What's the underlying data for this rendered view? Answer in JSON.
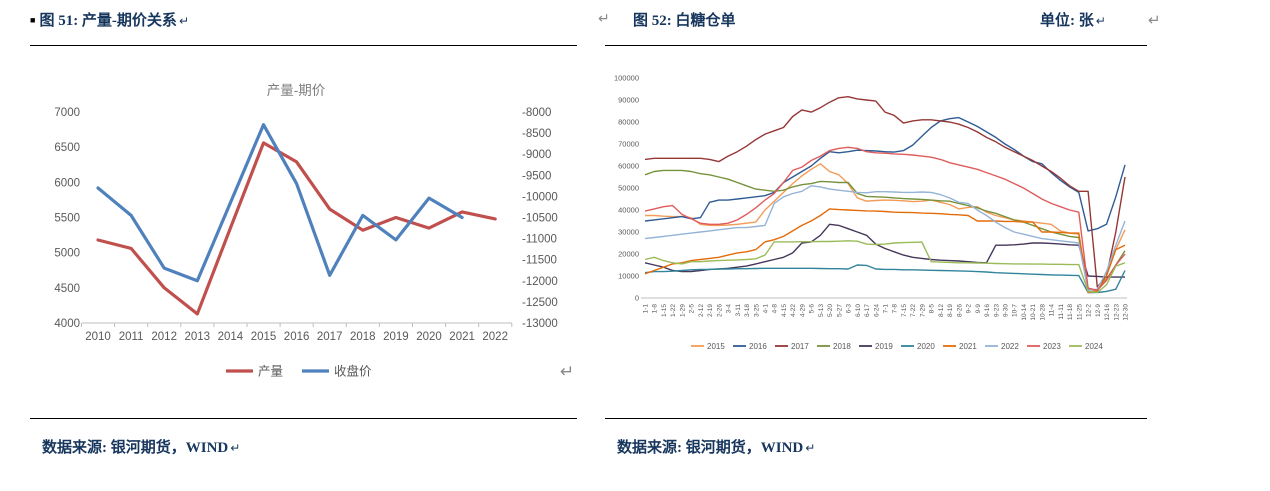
{
  "fig51": {
    "bullet": "■",
    "caption": "图 51: 产量-期价关系",
    "return_mark": "↵",
    "source": "数据来源: 银河期货，WIND",
    "source_return_mark": "↵"
  },
  "fig52": {
    "caption": "图 52: 白糖仓单",
    "unit_label": "单位: 张",
    "unit_return_mark": "↵",
    "source": "数据来源: 银河期货，WIND",
    "source_return_mark": "↵"
  },
  "floating_marks": {
    "between_titles": "↵",
    "top_right": "↵",
    "mid_right_of_fig51": "↵"
  },
  "colors": {
    "caption_navy": "#17365D",
    "axis_text": "#595959",
    "axis_line": "#BFBFBF",
    "chart_title_gray": "#7F7F7F"
  },
  "chart_data": [
    {
      "type": "line",
      "title": "产量-期价",
      "legend_position": "bottom",
      "grid": false,
      "categories": [
        "2010",
        "2011",
        "2012",
        "2013",
        "2014",
        "2015",
        "2016",
        "2017",
        "2018",
        "2019",
        "2020",
        "2021",
        "2022"
      ],
      "left_axis": {
        "min": 4000,
        "max": 7000,
        "ticks": [
          7000,
          6500,
          6000,
          5500,
          5000,
          4500,
          4000
        ]
      },
      "right_axis": {
        "min": -13000,
        "max": -8000,
        "ticks": [
          -8000,
          -8500,
          -9000,
          -9500,
          -10000,
          -10500,
          -11000,
          -11500,
          -12000,
          -12500,
          -13000
        ]
      },
      "series": [
        {
          "name": "产量",
          "axis": "left",
          "color": "#C0504D",
          "values": [
            5180,
            5060,
            4500,
            4130,
            5350,
            6560,
            6290,
            5620,
            5320,
            5500,
            5350,
            5580,
            5480
          ]
        },
        {
          "name": "收盘价",
          "axis": "right",
          "color": "#4F81BD",
          "values": [
            -9800,
            -10450,
            -11700,
            -12000,
            -10150,
            -8300,
            -9700,
            -11870,
            -10450,
            -11030,
            -10040,
            -10500,
            null
          ]
        }
      ]
    },
    {
      "type": "line",
      "title": "",
      "legend_position": "bottom",
      "grid": false,
      "y_axis": {
        "min": 0,
        "max": 100000,
        "ticks": [
          0,
          10000,
          20000,
          30000,
          40000,
          50000,
          60000,
          70000,
          80000,
          90000,
          100000
        ]
      },
      "categories": [
        "1-1",
        "1-8",
        "1-15",
        "1-22",
        "1-29",
        "2-5",
        "2-12",
        "2-19",
        "2-26",
        "3-4",
        "3-11",
        "3-18",
        "3-25",
        "4-1",
        "4-8",
        "4-15",
        "4-22",
        "4-29",
        "5-6",
        "5-13",
        "5-20",
        "5-27",
        "6-3",
        "6-10",
        "6-17",
        "6-24",
        "7-1",
        "7-8",
        "7-15",
        "7-22",
        "7-29",
        "8-5",
        "8-12",
        "8-19",
        "8-26",
        "9-2",
        "9-9",
        "9-16",
        "9-23",
        "9-30",
        "10-7",
        "10-14",
        "10-21",
        "10-28",
        "11-4",
        "11-11",
        "11-18",
        "11-25",
        "12-2",
        "12-9",
        "12-16",
        "12-23",
        "12-30"
      ],
      "series": [
        {
          "name": "2015",
          "color": "#F49B57",
          "values": [
            37500,
            37500,
            37200,
            37000,
            37000,
            36500,
            33500,
            33000,
            33000,
            33200,
            33500,
            34000,
            34500,
            40000,
            44000,
            48000,
            52000,
            55500,
            58500,
            61000,
            57500,
            56000,
            52000,
            45500,
            44000,
            44300,
            44500,
            44400,
            44200,
            43800,
            44000,
            44500,
            43500,
            42500,
            40500,
            41200,
            41500,
            39000,
            37500,
            36500,
            35500,
            35000,
            34500,
            34000,
            33500,
            30500,
            29500,
            29000,
            4000,
            3000,
            12000,
            22000,
            31000
          ]
        },
        {
          "name": "2016",
          "color": "#2F5B94",
          "values": [
            35000,
            35500,
            36000,
            36500,
            37000,
            36000,
            36500,
            43500,
            44500,
            44500,
            45000,
            45500,
            46000,
            46500,
            48000,
            52500,
            55000,
            57500,
            60000,
            63500,
            66500,
            66000,
            66500,
            67200,
            67000,
            66800,
            66500,
            66300,
            67000,
            69500,
            73500,
            77500,
            80500,
            81500,
            82000,
            80000,
            78000,
            75500,
            73000,
            70000,
            67500,
            64500,
            62000,
            61000,
            57000,
            53500,
            50500,
            48000,
            30500,
            31500,
            33500,
            46000,
            60500
          ]
        },
        {
          "name": "2017",
          "color": "#953735",
          "values": [
            63000,
            63500,
            63500,
            63500,
            63500,
            63500,
            63500,
            63000,
            62000,
            64500,
            66500,
            69000,
            72000,
            74500,
            76000,
            77500,
            82500,
            85500,
            84500,
            86500,
            89000,
            91000,
            91500,
            90500,
            90000,
            89500,
            84500,
            83000,
            79500,
            80500,
            81000,
            81000,
            80500,
            80000,
            79000,
            77500,
            75500,
            73000,
            71000,
            68500,
            66500,
            64500,
            62500,
            60000,
            57500,
            54500,
            51000,
            48500,
            48500,
            5000,
            10000,
            30000,
            55000
          ]
        },
        {
          "name": "2018",
          "color": "#76923C",
          "values": [
            56000,
            57500,
            58000,
            58000,
            58000,
            57500,
            56500,
            56000,
            55000,
            54000,
            52500,
            51000,
            49500,
            49000,
            48500,
            49000,
            50500,
            51500,
            52000,
            53000,
            52800,
            52500,
            52500,
            47500,
            46200,
            46000,
            45800,
            45500,
            45200,
            45000,
            44800,
            44500,
            44200,
            44000,
            43000,
            42000,
            41000,
            39500,
            38500,
            37000,
            35500,
            34500,
            33000,
            31500,
            30000,
            29000,
            28000,
            27500,
            4000,
            3500,
            8500,
            15000,
            21500
          ]
        },
        {
          "name": "2019",
          "color": "#45365A",
          "values": [
            16000,
            15000,
            14000,
            12500,
            12000,
            12000,
            12500,
            13000,
            13200,
            13500,
            14000,
            14500,
            15500,
            16500,
            17500,
            18500,
            20500,
            25000,
            25500,
            28500,
            33500,
            33000,
            31500,
            30000,
            28500,
            24500,
            22500,
            21000,
            19500,
            18500,
            18000,
            17500,
            17200,
            17000,
            16800,
            16500,
            16200,
            16000,
            24000,
            24000,
            24200,
            24500,
            25000,
            25000,
            24800,
            24500,
            24200,
            24000,
            10000,
            9800,
            9500,
            9500,
            9500
          ]
        },
        {
          "name": "2020",
          "color": "#31849B",
          "values": [
            11500,
            12000,
            12000,
            12200,
            12500,
            12800,
            13000,
            13000,
            13200,
            13200,
            13300,
            13300,
            13400,
            13500,
            13500,
            13500,
            13500,
            13500,
            13500,
            13400,
            13300,
            13300,
            13200,
            15000,
            14800,
            13200,
            13000,
            13000,
            12800,
            12800,
            12700,
            12600,
            12500,
            12400,
            12300,
            12200,
            12000,
            11800,
            11500,
            11300,
            11200,
            11000,
            10800,
            10700,
            10500,
            10400,
            10300,
            10200,
            2500,
            2500,
            3000,
            4000,
            12500
          ]
        },
        {
          "name": "2021",
          "color": "#E36C0A",
          "values": [
            11000,
            12500,
            14000,
            15500,
            16000,
            17000,
            17500,
            18000,
            18500,
            19500,
            20500,
            21000,
            22000,
            25500,
            26500,
            28000,
            30500,
            33000,
            35000,
            37500,
            40500,
            40200,
            40000,
            39800,
            39600,
            39500,
            39300,
            39000,
            38900,
            38800,
            38600,
            38500,
            38300,
            38000,
            37800,
            37500,
            35000,
            35000,
            35000,
            34800,
            34800,
            34500,
            34500,
            30000,
            30000,
            29800,
            29500,
            29500,
            2500,
            3000,
            10000,
            22000,
            24000
          ]
        },
        {
          "name": "2022",
          "color": "#95B3D7",
          "values": [
            27000,
            27500,
            28000,
            28500,
            29000,
            29500,
            30000,
            30500,
            31000,
            31500,
            32000,
            32000,
            32500,
            33000,
            43000,
            46000,
            47500,
            48500,
            51000,
            50500,
            49500,
            49000,
            48500,
            48000,
            47800,
            48300,
            48300,
            48200,
            48000,
            48000,
            48200,
            48000,
            47000,
            45500,
            43500,
            43000,
            40000,
            37500,
            34500,
            32000,
            30000,
            29000,
            28000,
            27000,
            26500,
            26000,
            25500,
            25000,
            3500,
            4000,
            12000,
            24000,
            35000
          ]
        },
        {
          "name": "2023",
          "color": "#E05C5C",
          "values": [
            39500,
            40500,
            41500,
            42000,
            38000,
            36000,
            34000,
            33500,
            33500,
            34000,
            35500,
            38000,
            41000,
            44500,
            47500,
            52500,
            58000,
            59500,
            62500,
            64500,
            67000,
            68000,
            68500,
            68000,
            66500,
            66000,
            65800,
            65500,
            65300,
            65000,
            64500,
            64000,
            63000,
            61500,
            60500,
            59500,
            58500,
            57000,
            55500,
            54000,
            52000,
            50000,
            47500,
            45000,
            43000,
            41500,
            40000,
            39000,
            4500,
            3500,
            8000,
            15000,
            20000
          ]
        },
        {
          "name": "2024",
          "color": "#9BBB59",
          "values": [
            17500,
            18500,
            17000,
            16000,
            15500,
            16500,
            16500,
            16800,
            17000,
            17200,
            17300,
            17500,
            17800,
            19500,
            25500,
            25500,
            25500,
            25600,
            25600,
            25700,
            25700,
            25800,
            26000,
            25800,
            24500,
            24300,
            24500,
            25000,
            25200,
            25300,
            25400,
            16500,
            16300,
            16200,
            16000,
            16000,
            15900,
            15800,
            15700,
            15600,
            15500,
            15500,
            15400,
            15400,
            15300,
            15300,
            15200,
            15200,
            3000,
            2500,
            6000,
            14500,
            16000
          ]
        }
      ]
    }
  ]
}
